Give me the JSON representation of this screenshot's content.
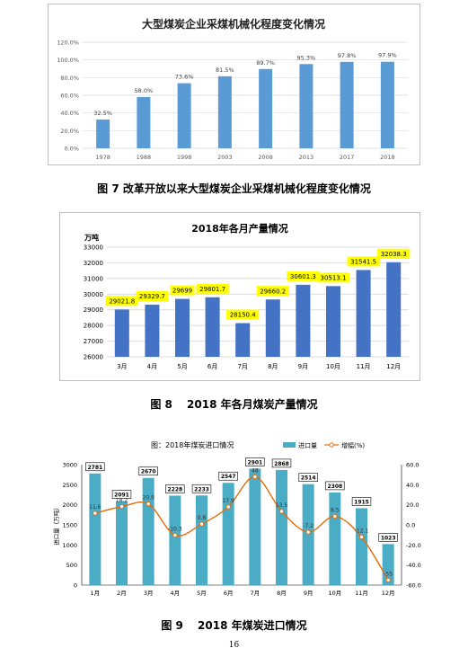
{
  "page": {
    "caption_fig7": "图 7 改革开放以来大型煤炭企业采煤机械化程度变化情况",
    "caption_fig8": "图 8 　2018 年各月煤炭产量情况",
    "caption_fig9": "图 9 　2018 年煤炭进口情况",
    "page_number": "16"
  },
  "chart_data": [
    {
      "type": "bar",
      "title": "大型煤炭企业采煤机械化程度变化情况",
      "categories": [
        "1978",
        "1988",
        "1998",
        "2003",
        "2008",
        "2013",
        "2017",
        "2018"
      ],
      "values": [
        32.5,
        58.0,
        73.6,
        81.5,
        89.7,
        95.3,
        97.8,
        97.9
      ],
      "data_labels": [
        "32.5%",
        "58.0%",
        "73.6%",
        "81.5%",
        "89.7%",
        "95.3%",
        "97.8%",
        "97.9%"
      ],
      "ylim": [
        0,
        120
      ],
      "yticks": [
        "0.0%",
        "20.0%",
        "40.0%",
        "60.0%",
        "80.0%",
        "100.0%",
        "120.0%"
      ],
      "grid": true,
      "color": "#5b9bd5"
    },
    {
      "type": "bar",
      "title": "2018年各月产量情况",
      "ylabel": "万吨",
      "categories": [
        "3月",
        "4月",
        "5月",
        "6月",
        "7月",
        "8月",
        "9月",
        "10月",
        "11月",
        "12月"
      ],
      "values": [
        29021.8,
        29329.7,
        29699,
        29801.7,
        28150.4,
        29660.2,
        30601.3,
        30513.1,
        31541.5,
        32038.3
      ],
      "data_labels": [
        "29021.8",
        "29329.7",
        "29699",
        "29801.7",
        "28150.4",
        "29660.2",
        "30601.3",
        "30513.1",
        "31541.5",
        "32038.3"
      ],
      "ylim": [
        26000,
        33000
      ],
      "yticks": [
        "26000",
        "27000",
        "28000",
        "29000",
        "30000",
        "31000",
        "32000",
        "33000"
      ],
      "grid": true,
      "color": "#4472c4",
      "label_bg": "#ffff00"
    },
    {
      "type": "bar",
      "title": "图：2018年煤炭进口情况",
      "ylabel": "进口量（万吨）",
      "legend_placement": "top-right",
      "categories": [
        "1月",
        "2月",
        "3月",
        "4月",
        "5月",
        "6月",
        "7月",
        "8月",
        "9月",
        "10月",
        "11月",
        "12月"
      ],
      "series": [
        {
          "name": "进口量",
          "kind": "bar",
          "axis": "left",
          "values": [
            2781,
            2091,
            2670,
            2228,
            2233,
            2547,
            2901,
            2868,
            2514,
            2308,
            1915,
            1023
          ],
          "data_labels": [
            "2781",
            "2091",
            "2670",
            "2228",
            "2233",
            "2547",
            "2901",
            "2868",
            "2514",
            "2308",
            "1915",
            "1023"
          ],
          "color": "#4bacc6"
        },
        {
          "name": "增幅(%)",
          "kind": "line",
          "axis": "right",
          "values": [
            11.6,
            18.2,
            20.9,
            -10.3,
            0.8,
            17.9,
            48,
            13.5,
            -7.2,
            8.5,
            -12.1,
            -55
          ],
          "data_labels": [
            "11.6",
            "18.2",
            "20.9",
            "-10.3",
            "0.8",
            "17.9",
            "48",
            "13.5",
            "-7.2",
            "8.5",
            "-12.1",
            "-55"
          ],
          "color": "#e46c0a"
        }
      ],
      "ylim": [
        0,
        3000
      ],
      "yticks": [
        "0",
        "500",
        "1000",
        "1500",
        "2000",
        "2500",
        "3000"
      ],
      "y2lim": [
        -60,
        60
      ],
      "y2ticks": [
        "-60.0",
        "-40.0",
        "-20.0",
        "0.0",
        "20.0",
        "40.0",
        "60.0"
      ],
      "grid": false
    }
  ]
}
